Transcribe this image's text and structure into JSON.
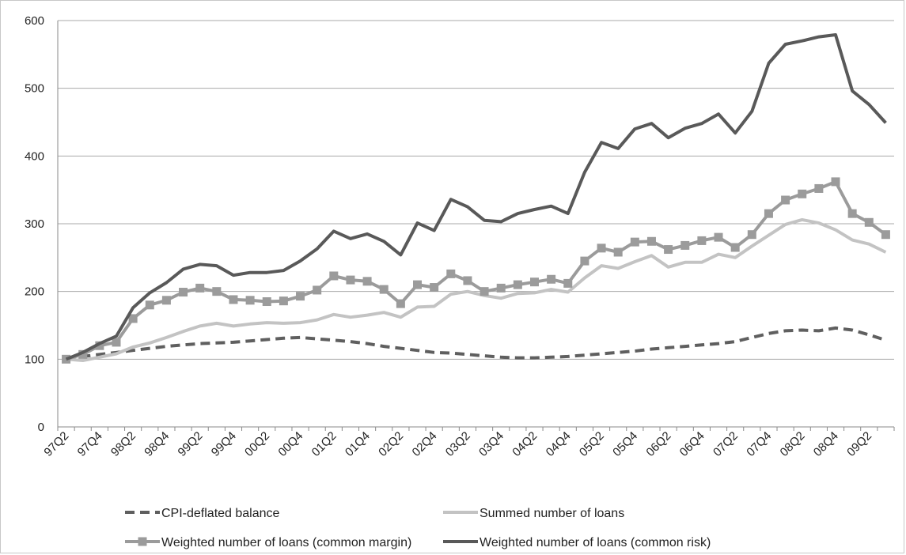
{
  "chart_data": {
    "type": "line",
    "title": "",
    "xlabel": "",
    "ylabel": "",
    "ylim": [
      0,
      600
    ],
    "yticks": [
      0,
      100,
      200,
      300,
      400,
      500,
      600
    ],
    "grid": "horizontal",
    "legend_position": "bottom",
    "categories": [
      "97Q2",
      "97Q3",
      "97Q4",
      "98Q1",
      "98Q2",
      "98Q3",
      "98Q4",
      "99Q1",
      "99Q2",
      "99Q3",
      "99Q4",
      "00Q1",
      "00Q2",
      "00Q3",
      "00Q4",
      "01Q1",
      "01Q2",
      "01Q3",
      "01Q4",
      "02Q1",
      "02Q2",
      "02Q3",
      "02Q4",
      "03Q1",
      "03Q2",
      "03Q3",
      "03Q4",
      "04Q1",
      "04Q2",
      "04Q3",
      "04Q4",
      "05Q1",
      "05Q2",
      "05Q3",
      "05Q4",
      "06Q1",
      "06Q2",
      "06Q3",
      "06Q4",
      "07Q1",
      "07Q2",
      "07Q3",
      "07Q4",
      "08Q1",
      "08Q2",
      "08Q3",
      "08Q4",
      "09Q1",
      "09Q2",
      "09Q3"
    ],
    "x_tick_labels": [
      "97Q2",
      "97Q4",
      "98Q2",
      "98Q4",
      "99Q2",
      "99Q4",
      "00Q2",
      "00Q4",
      "01Q2",
      "01Q4",
      "02Q2",
      "02Q4",
      "03Q2",
      "03Q4",
      "04Q2",
      "04Q4",
      "05Q2",
      "05Q4",
      "06Q2",
      "06Q4",
      "07Q2",
      "07Q4",
      "08Q2",
      "08Q4",
      "09Q2"
    ],
    "series": [
      {
        "name": "CPI-deflated balance",
        "color": "#5f5f5f",
        "style": "dashed",
        "values": [
          100,
          104,
          107,
          110,
          113,
          116,
          119,
          121,
          123,
          124,
          125,
          127,
          129,
          131,
          132,
          130,
          128,
          126,
          123,
          119,
          116,
          113,
          110,
          109,
          107,
          105,
          103,
          102,
          102,
          103,
          104,
          106,
          108,
          110,
          112,
          115,
          117,
          119,
          121,
          123,
          126,
          132,
          138,
          142,
          143,
          142,
          146,
          143,
          136,
          128
        ]
      },
      {
        "name": "Summed number of loans",
        "color": "#c3c3c3",
        "style": "solid",
        "values": [
          100,
          98,
          103,
          108,
          118,
          124,
          132,
          141,
          149,
          153,
          149,
          152,
          154,
          153,
          154,
          158,
          166,
          162,
          165,
          169,
          162,
          177,
          178,
          196,
          200,
          194,
          190,
          197,
          198,
          203,
          199,
          220,
          238,
          234,
          244,
          253,
          236,
          243,
          243,
          255,
          250,
          267,
          283,
          299,
          306,
          301,
          291,
          276,
          270,
          258
        ]
      },
      {
        "name": "Weighted number of loans (common margin)",
        "color": "#9b9b9b",
        "style": "solid-square-markers",
        "values": [
          100,
          107,
          120,
          125,
          160,
          180,
          187,
          199,
          205,
          200,
          188,
          187,
          185,
          186,
          193,
          202,
          223,
          217,
          215,
          203,
          182,
          210,
          206,
          226,
          216,
          200,
          205,
          210,
          214,
          218,
          212,
          245,
          264,
          258,
          273,
          274,
          262,
          268,
          275,
          280,
          265,
          284,
          315,
          335,
          344,
          352,
          362,
          315,
          302,
          284
        ]
      },
      {
        "name": "Weighted number of loans (common risk)",
        "color": "#595959",
        "style": "solid",
        "values": [
          100,
          110,
          123,
          134,
          176,
          198,
          213,
          233,
          240,
          238,
          224,
          228,
          228,
          231,
          245,
          263,
          289,
          278,
          285,
          274,
          254,
          301,
          290,
          336,
          325,
          305,
          303,
          315,
          321,
          326,
          315,
          376,
          420,
          411,
          440,
          448,
          427,
          441,
          448,
          462,
          434,
          466,
          537,
          565,
          570,
          576,
          579,
          496,
          476,
          449
        ]
      }
    ]
  }
}
